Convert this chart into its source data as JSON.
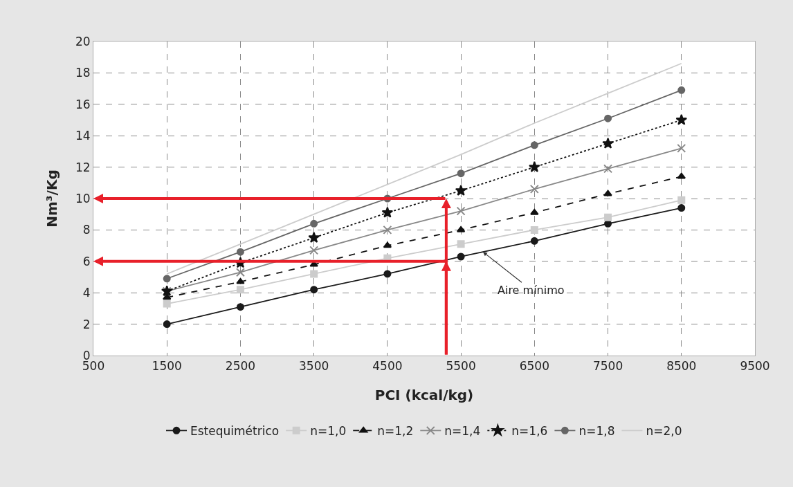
{
  "chart_data": {
    "type": "line",
    "xlabel": "PCI (kcal/kg)",
    "ylabel": "Nm³/Kg",
    "x": [
      1500,
      2500,
      3500,
      4500,
      5500,
      6500,
      7500,
      8500
    ],
    "series": [
      {
        "name": "Estequimétrico",
        "color": "#1a1a1a",
        "marker": "circle",
        "line_style": "solid",
        "values": [
          2.0,
          3.1,
          4.2,
          5.2,
          6.3,
          7.3,
          8.4,
          9.4
        ]
      },
      {
        "name": "n=1,0",
        "color": "#cccccc",
        "marker": "square",
        "line_style": "solid",
        "values": [
          3.3,
          4.2,
          5.2,
          6.2,
          7.1,
          8.0,
          8.8,
          9.9
        ]
      },
      {
        "name": "n=1,2",
        "color": "#111111",
        "marker": "triangle",
        "line_style": "dashed",
        "values": [
          3.7,
          4.7,
          5.8,
          7.0,
          8.0,
          9.1,
          10.3,
          11.4
        ]
      },
      {
        "name": "n=1,4",
        "color": "#888888",
        "marker": "cross",
        "line_style": "solid",
        "values": [
          4.1,
          5.3,
          6.7,
          8.0,
          9.2,
          10.6,
          11.9,
          13.2
        ]
      },
      {
        "name": "n=1,6",
        "color": "#111111",
        "marker": "star",
        "line_style": "dotted",
        "values": [
          4.1,
          5.9,
          7.5,
          9.1,
          10.5,
          12.0,
          13.5,
          15.0
        ]
      },
      {
        "name": "n=1,8",
        "color": "#666666",
        "marker": "circle",
        "line_style": "solid",
        "values": [
          4.9,
          6.6,
          8.4,
          10.0,
          11.6,
          13.4,
          15.1,
          16.9
        ]
      },
      {
        "name": "n=2,0",
        "color": "#cccccc",
        "marker": "none",
        "line_style": "solid",
        "values": [
          5.2,
          7.1,
          9.0,
          10.9,
          12.8,
          14.8,
          16.7,
          18.6
        ]
      }
    ],
    "xlim": [
      500,
      9500
    ],
    "xticks": [
      500,
      1500,
      2500,
      3500,
      4500,
      5500,
      6500,
      7500,
      8500,
      9500
    ],
    "ylim": [
      0,
      20
    ],
    "yticks": [
      0,
      2,
      4,
      6,
      8,
      10,
      12,
      14,
      16,
      18,
      20
    ],
    "grid": true,
    "legend": "bottom",
    "ref_lines": [
      {
        "axis": "y",
        "value": 10,
        "color": "#e8202a"
      },
      {
        "axis": "y",
        "value": 6,
        "color": "#e8202a"
      },
      {
        "axis": "x",
        "value": 5300,
        "color": "#e8202a"
      }
    ],
    "annotations": [
      {
        "text": "Aire mínimo",
        "x": 5800,
        "y": 6.6
      }
    ]
  }
}
